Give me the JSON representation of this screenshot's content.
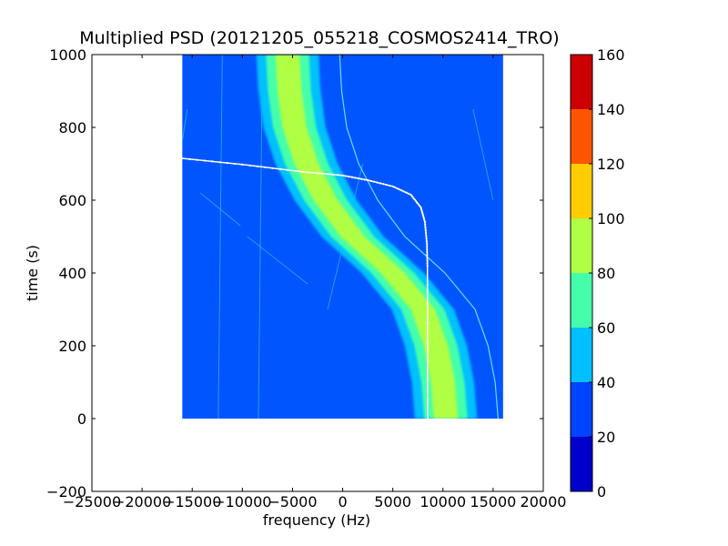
{
  "chart_data": {
    "type": "heatmap",
    "title": "Multiplied PSD (20121205_055218_COSMOS2414_TRO)",
    "xlabel": "frequency (Hz)",
    "ylabel": "time (s)",
    "xlim": [
      -25000,
      20000
    ],
    "ylim": [
      -200,
      1000
    ],
    "xticks": [
      -25000,
      -20000,
      -15000,
      -10000,
      -5000,
      0,
      5000,
      10000,
      15000,
      20000
    ],
    "xtick_labels": [
      "−25000",
      "−20000",
      "−15000",
      "−10000",
      "−5000",
      "0",
      "5000",
      "10000",
      "15000",
      "20000"
    ],
    "yticks": [
      -200,
      0,
      200,
      400,
      600,
      800,
      1000
    ],
    "ytick_labels": [
      "−200",
      "0",
      "200",
      "400",
      "600",
      "800",
      "1000"
    ],
    "data_extent": {
      "x": [
        -16000,
        16000
      ],
      "y": [
        0,
        1000
      ]
    },
    "background_level_color": "#0055ff",
    "colorbar": {
      "levels": [
        0,
        20,
        40,
        60,
        80,
        100,
        120,
        140,
        160
      ],
      "tick_labels": [
        "0",
        "20",
        "40",
        "60",
        "80",
        "100",
        "120",
        "140",
        "160"
      ],
      "colors": [
        "#0000cc",
        "#0044ff",
        "#00c0ff",
        "#44ffaa",
        "#b0ff44",
        "#ffcc00",
        "#ff5500",
        "#cc0000"
      ]
    },
    "signal_track": {
      "description": "main Doppler curve (PSD band)",
      "points": [
        {
          "t": 1000,
          "f": -5500
        },
        {
          "t": 900,
          "f": -5300
        },
        {
          "t": 800,
          "f": -4800
        },
        {
          "t": 700,
          "f": -3600
        },
        {
          "t": 600,
          "f": -1700
        },
        {
          "t": 500,
          "f": 1000
        },
        {
          "t": 400,
          "f": 5000
        },
        {
          "t": 300,
          "f": 8000
        },
        {
          "t": 200,
          "f": 9300
        },
        {
          "t": 100,
          "f": 10000
        },
        {
          "t": 0,
          "f": 10300
        }
      ]
    },
    "white_curve": [
      {
        "f": -16000,
        "t": 715
      },
      {
        "f": -10000,
        "t": 698
      },
      {
        "f": -4000,
        "t": 678
      },
      {
        "f": 0,
        "t": 668
      },
      {
        "f": 2500,
        "t": 655
      },
      {
        "f": 5000,
        "t": 638
      },
      {
        "f": 6800,
        "t": 615
      },
      {
        "f": 7800,
        "t": 580
      },
      {
        "f": 8200,
        "t": 540
      },
      {
        "f": 8400,
        "t": 480
      },
      {
        "f": 8450,
        "t": 420
      },
      {
        "f": 8480,
        "t": 0
      }
    ]
  }
}
